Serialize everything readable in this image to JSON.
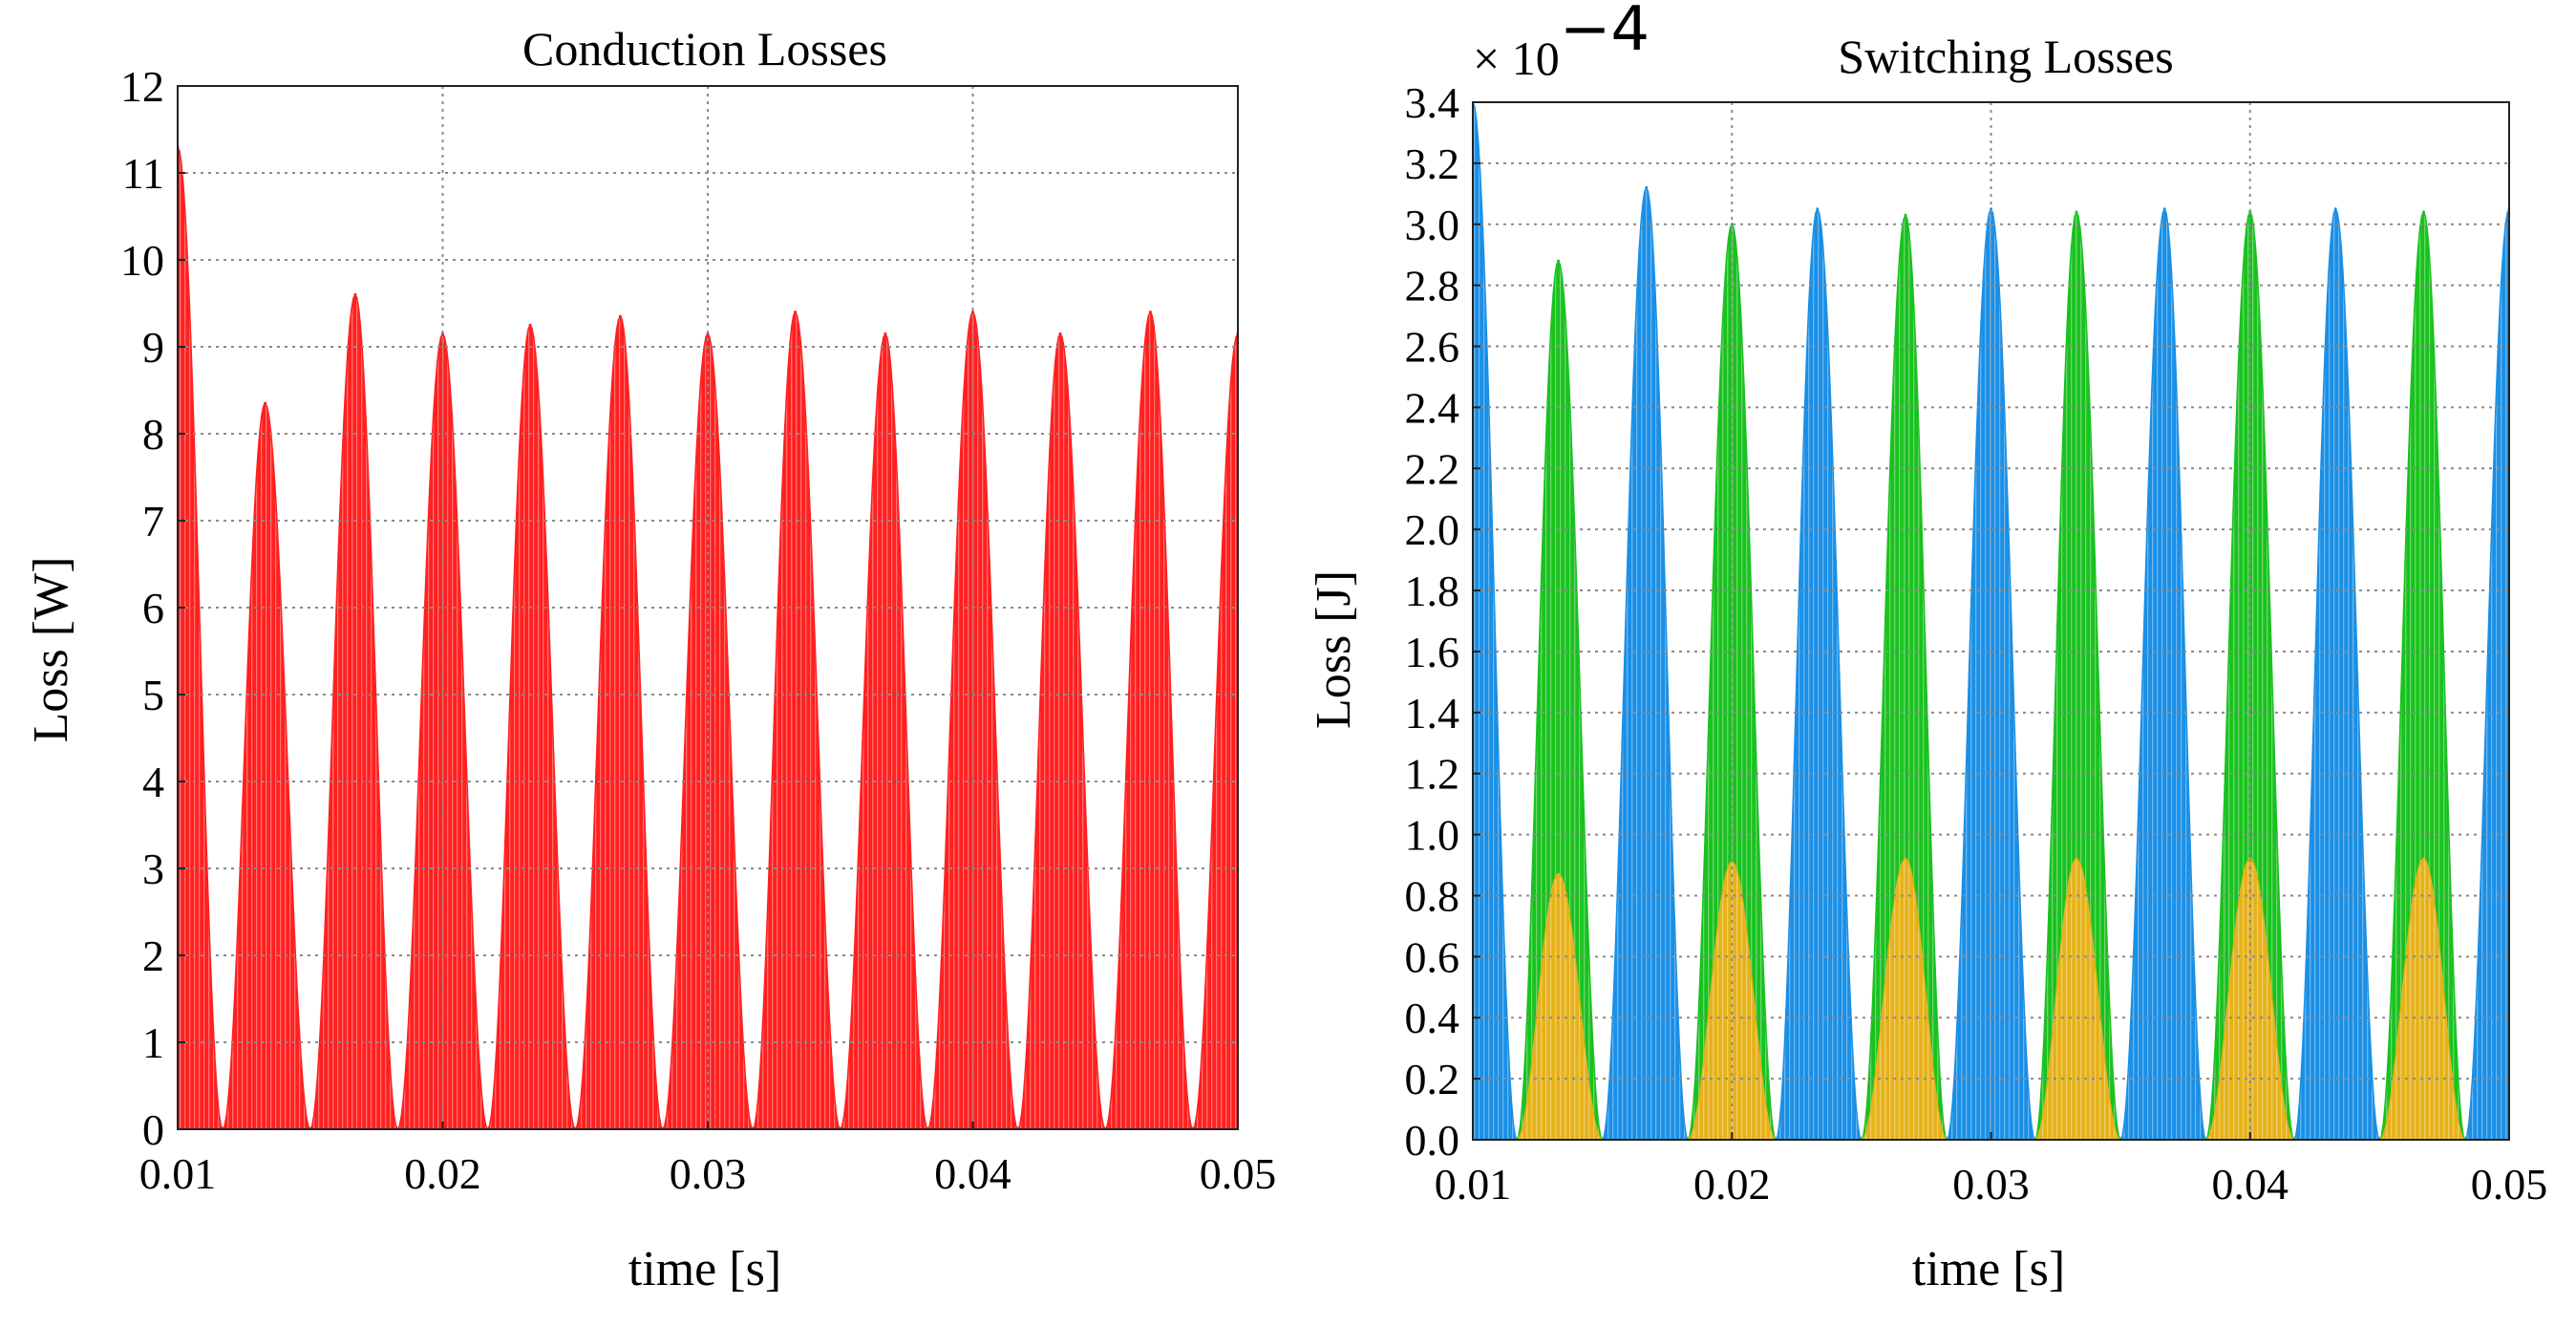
{
  "chart_data": [
    {
      "type": "area",
      "title": "Conduction Losses",
      "xlabel": "time [s]",
      "ylabel": "Loss [W]",
      "xlim": [
        0.01,
        0.05
      ],
      "ylim": [
        0,
        12
      ],
      "xticks": [
        "0.01",
        "0.02",
        "0.03",
        "0.04",
        "0.05"
      ],
      "yticks": [
        "0",
        "1",
        "2",
        "3",
        "4",
        "5",
        "6",
        "7",
        "8",
        "9",
        "10",
        "11",
        "12"
      ],
      "grid": true,
      "series": [
        {
          "name": "conduction loss envelope",
          "color": "#ff2020",
          "x": [
            0.01,
            0.0117,
            0.0133,
            0.015,
            0.0167,
            0.0183,
            0.02,
            0.0217,
            0.0233,
            0.025,
            0.0267,
            0.0283,
            0.03,
            0.0317,
            0.0333,
            0.035,
            0.0367,
            0.0383,
            0.04,
            0.0417,
            0.0433,
            0.045,
            0.0467,
            0.0483,
            0.05
          ],
          "values": [
            11.3,
            0,
            8.35,
            0,
            9.6,
            0,
            9.15,
            0,
            9.25,
            0,
            9.35,
            0,
            9.15,
            0,
            9.4,
            0,
            9.15,
            0,
            9.4,
            0,
            9.15,
            0,
            9.4,
            0,
            9.15
          ]
        }
      ]
    },
    {
      "type": "area",
      "title": "Switching Losses",
      "multiplier": "× 10",
      "multiplier_exp": "−4",
      "xlabel": "time [s]",
      "ylabel": "Loss [J]",
      "xlim": [
        0.01,
        0.05
      ],
      "ylim": [
        0,
        3.4
      ],
      "xticks": [
        "0.01",
        "0.02",
        "0.03",
        "0.04",
        "0.05"
      ],
      "yticks": [
        "0.0",
        "0.2",
        "0.4",
        "0.6",
        "0.8",
        "1.0",
        "1.2",
        "1.4",
        "1.6",
        "1.8",
        "2.0",
        "2.2",
        "2.4",
        "2.6",
        "2.8",
        "3.0",
        "3.2",
        "3.4"
      ],
      "grid": true,
      "series": [
        {
          "name": "blue",
          "color": "#1a8fe6",
          "x": [
            0.01,
            0.0117,
            0.0133,
            0.015,
            0.0167,
            0.0183,
            0.02,
            0.0217,
            0.0233,
            0.025,
            0.0267,
            0.0283,
            0.03,
            0.0317,
            0.0333,
            0.035,
            0.0367,
            0.0383,
            0.04,
            0.0417,
            0.0433,
            0.045,
            0.0467,
            0.0483,
            0.05
          ],
          "values": [
            3.4,
            0,
            0,
            0,
            3.12,
            0,
            0,
            0,
            3.05,
            0,
            0,
            0,
            3.05,
            0,
            0,
            0,
            3.05,
            0,
            0,
            0,
            3.05,
            0,
            0,
            0,
            3.05
          ]
        },
        {
          "name": "green",
          "color": "#19c21f",
          "x": [
            0.01,
            0.0117,
            0.0133,
            0.015,
            0.0167,
            0.0183,
            0.02,
            0.0217,
            0.0233,
            0.025,
            0.0267,
            0.0283,
            0.03,
            0.0317,
            0.0333,
            0.035,
            0.0367,
            0.0383,
            0.04,
            0.0417,
            0.0433,
            0.045,
            0.0467,
            0.0483,
            0.05
          ],
          "values": [
            0,
            0,
            2.88,
            0,
            0,
            0,
            3.0,
            0,
            0,
            0,
            3.03,
            0,
            0,
            0,
            3.04,
            0,
            0,
            0,
            3.04,
            0,
            0,
            0,
            3.04,
            0,
            0
          ]
        },
        {
          "name": "orange",
          "color": "#e6b21a",
          "x": [
            0.01,
            0.0117,
            0.0133,
            0.015,
            0.0167,
            0.0183,
            0.02,
            0.0217,
            0.0233,
            0.025,
            0.0267,
            0.0283,
            0.03,
            0.0317,
            0.0333,
            0.035,
            0.0367,
            0.0383,
            0.04,
            0.0417,
            0.0433,
            0.045,
            0.0467,
            0.0483,
            0.05
          ],
          "values": [
            0,
            0,
            0.87,
            0,
            0,
            0,
            0.91,
            0,
            0,
            0,
            0.92,
            0,
            0,
            0,
            0.92,
            0,
            0,
            0,
            0.92,
            0,
            0,
            0,
            0.92,
            0,
            0
          ]
        }
      ]
    }
  ]
}
